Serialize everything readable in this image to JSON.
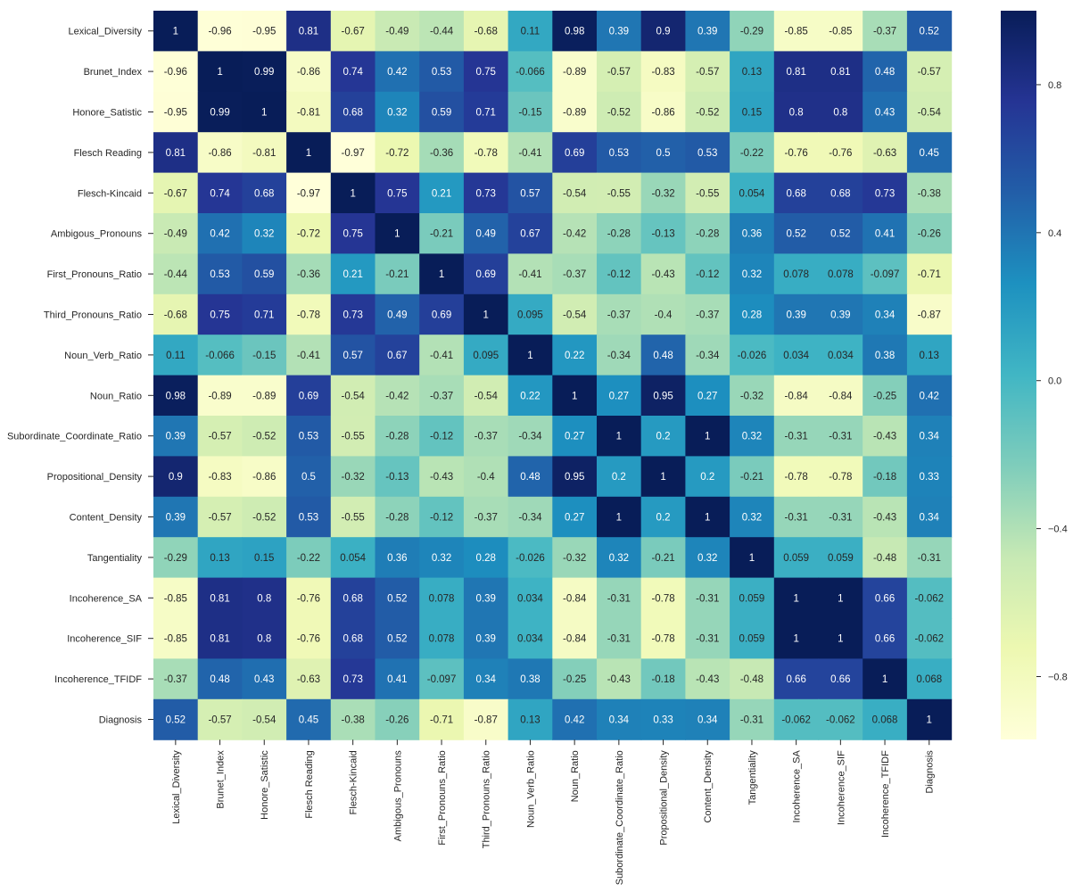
{
  "chart_data": {
    "type": "heatmap",
    "title": "",
    "xlabel": "",
    "ylabel": "",
    "labels": [
      "Lexical_Diversity",
      "Brunet_Index",
      "Honore_Satistic",
      "Flesch Reading",
      "Flesch-Kincaid",
      "Ambigous_Pronouns",
      "First_Pronouns_Ratio",
      "Third_Pronouns_Ratio",
      "Noun_Verb_Ratio",
      "Noun_Ratio",
      "Subordinate_Coordinate_Ratio",
      "Propositional_Density",
      "Content_Density",
      "Tangentiality",
      "Incoherence_SA",
      "Incoherence_SIF",
      "Incoherence_TFIDF",
      "Diagnosis"
    ],
    "matrix": [
      [
        "1",
        "-0.96",
        "-0.95",
        "0.81",
        "-0.67",
        "-0.49",
        "-0.44",
        "-0.68",
        "0.11",
        "0.98",
        "0.39",
        "0.9",
        "0.39",
        "-0.29",
        "-0.85",
        "-0.85",
        "-0.37",
        "0.52"
      ],
      [
        "-0.96",
        "1",
        "0.99",
        "-0.86",
        "0.74",
        "0.42",
        "0.53",
        "0.75",
        "-0.066",
        "-0.89",
        "-0.57",
        "-0.83",
        "-0.57",
        "0.13",
        "0.81",
        "0.81",
        "0.48",
        "-0.57"
      ],
      [
        "-0.95",
        "0.99",
        "1",
        "-0.81",
        "0.68",
        "0.32",
        "0.59",
        "0.71",
        "-0.15",
        "-0.89",
        "-0.52",
        "-0.86",
        "-0.52",
        "0.15",
        "0.8",
        "0.8",
        "0.43",
        "-0.54"
      ],
      [
        "0.81",
        "-0.86",
        "-0.81",
        "1",
        "-0.97",
        "-0.72",
        "-0.36",
        "-0.78",
        "-0.41",
        "0.69",
        "0.53",
        "0.5",
        "0.53",
        "-0.22",
        "-0.76",
        "-0.76",
        "-0.63",
        "0.45"
      ],
      [
        "-0.67",
        "0.74",
        "0.68",
        "-0.97",
        "1",
        "0.75",
        "0.21",
        "0.73",
        "0.57",
        "-0.54",
        "-0.55",
        "-0.32",
        "-0.55",
        "0.054",
        "0.68",
        "0.68",
        "0.73",
        "-0.38"
      ],
      [
        "-0.49",
        "0.42",
        "0.32",
        "-0.72",
        "0.75",
        "1",
        "-0.21",
        "0.49",
        "0.67",
        "-0.42",
        "-0.28",
        "-0.13",
        "-0.28",
        "0.36",
        "0.52",
        "0.52",
        "0.41",
        "-0.26"
      ],
      [
        "-0.44",
        "0.53",
        "0.59",
        "-0.36",
        "0.21",
        "-0.21",
        "1",
        "0.69",
        "-0.41",
        "-0.37",
        "-0.12",
        "-0.43",
        "-0.12",
        "0.32",
        "0.078",
        "0.078",
        "-0.097",
        "-0.71"
      ],
      [
        "-0.68",
        "0.75",
        "0.71",
        "-0.78",
        "0.73",
        "0.49",
        "0.69",
        "1",
        "0.095",
        "-0.54",
        "-0.37",
        "-0.4",
        "-0.37",
        "0.28",
        "0.39",
        "0.39",
        "0.34",
        "-0.87"
      ],
      [
        "0.11",
        "-0.066",
        "-0.15",
        "-0.41",
        "0.57",
        "0.67",
        "-0.41",
        "0.095",
        "1",
        "0.22",
        "-0.34",
        "0.48",
        "-0.34",
        "-0.026",
        "0.034",
        "0.034",
        "0.38",
        "0.13"
      ],
      [
        "0.98",
        "-0.89",
        "-0.89",
        "0.69",
        "-0.54",
        "-0.42",
        "-0.37",
        "-0.54",
        "0.22",
        "1",
        "0.27",
        "0.95",
        "0.27",
        "-0.32",
        "-0.84",
        "-0.84",
        "-0.25",
        "0.42"
      ],
      [
        "0.39",
        "-0.57",
        "-0.52",
        "0.53",
        "-0.55",
        "-0.28",
        "-0.12",
        "-0.37",
        "-0.34",
        "0.27",
        "1",
        "0.2",
        "1",
        "0.32",
        "-0.31",
        "-0.31",
        "-0.43",
        "0.34"
      ],
      [
        "0.9",
        "-0.83",
        "-0.86",
        "0.5",
        "-0.32",
        "-0.13",
        "-0.43",
        "-0.4",
        "0.48",
        "0.95",
        "0.2",
        "1",
        "0.2",
        "-0.21",
        "-0.78",
        "-0.78",
        "-0.18",
        "0.33"
      ],
      [
        "0.39",
        "-0.57",
        "-0.52",
        "0.53",
        "-0.55",
        "-0.28",
        "-0.12",
        "-0.37",
        "-0.34",
        "0.27",
        "1",
        "0.2",
        "1",
        "0.32",
        "-0.31",
        "-0.31",
        "-0.43",
        "0.34"
      ],
      [
        "-0.29",
        "0.13",
        "0.15",
        "-0.22",
        "0.054",
        "0.36",
        "0.32",
        "0.28",
        "-0.026",
        "-0.32",
        "0.32",
        "-0.21",
        "0.32",
        "1",
        "0.059",
        "0.059",
        "-0.48",
        "-0.31"
      ],
      [
        "-0.85",
        "0.81",
        "0.8",
        "-0.76",
        "0.68",
        "0.52",
        "0.078",
        "0.39",
        "0.034",
        "-0.84",
        "-0.31",
        "-0.78",
        "-0.31",
        "0.059",
        "1",
        "1",
        "0.66",
        "-0.062"
      ],
      [
        "-0.85",
        "0.81",
        "0.8",
        "-0.76",
        "0.68",
        "0.52",
        "0.078",
        "0.39",
        "0.034",
        "-0.84",
        "-0.31",
        "-0.78",
        "-0.31",
        "0.059",
        "1",
        "1",
        "0.66",
        "-0.062"
      ],
      [
        "-0.37",
        "0.48",
        "0.43",
        "-0.63",
        "0.73",
        "0.41",
        "-0.097",
        "0.34",
        "0.38",
        "-0.25",
        "-0.43",
        "-0.18",
        "-0.43",
        "-0.48",
        "0.66",
        "0.66",
        "1",
        "0.068"
      ],
      [
        "0.52",
        "-0.57",
        "-0.54",
        "0.45",
        "-0.38",
        "-0.26",
        "-0.71",
        "-0.87",
        "0.13",
        "0.42",
        "0.34",
        "0.33",
        "0.34",
        "-0.31",
        "-0.062",
        "-0.062",
        "0.068",
        "1"
      ]
    ],
    "vmin": -0.97,
    "vmax": 1,
    "colormap": "YlGnBu",
    "colorbar": {
      "ticks": [
        0.8,
        0.4,
        0.0,
        -0.4,
        -0.8
      ],
      "tick_labels": [
        "0.8",
        "0.4",
        "0.0",
        "−0.4",
        "−0.8"
      ]
    },
    "colormap_stops": [
      "#ffffd9",
      "#edf8b1",
      "#c7e9b4",
      "#7fcdbb",
      "#41b6c4",
      "#1d91c0",
      "#225ea8",
      "#253494",
      "#081d58"
    ],
    "annotation_dark_color": "#262626",
    "annotation_light_color": "#ffffff"
  }
}
